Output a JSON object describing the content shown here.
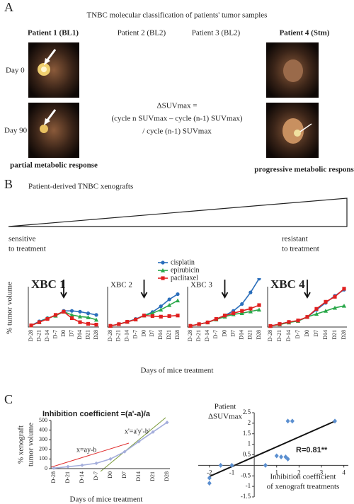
{
  "panel_a": {
    "label": "A",
    "title": "TNBC molecular classification of patients' tumor samples",
    "patients": [
      "Patient 1 (BL1)",
      "Patient 2 (BL2)",
      "Patient 3 (BL2)",
      "Patient 4 (Stm)"
    ],
    "timepoints": [
      "Day 0",
      "Day 90"
    ],
    "formula": [
      "ΔSUVmax =",
      "(cycle n SUVmax – cycle (n-1)  SUVmax)",
      "/ cycle (n-1) SUVmax"
    ],
    "responses": [
      "partial metabolic response",
      "progressive metabolic response"
    ]
  },
  "panel_b": {
    "label": "B",
    "title": "Patient-derived TNBC xenografts",
    "sensitive": [
      "sensitive",
      "to treatment"
    ],
    "resistant": [
      "resistant",
      "to treatment"
    ],
    "ylabel": "% tumor volume",
    "xlabel": "Days of mice treatment"
  },
  "panel_c": {
    "label": "C"
  },
  "chart_data": [
    {
      "type": "line",
      "title": "XBC 1",
      "title_bold": true,
      "categories": [
        "D-28",
        "D-21",
        "D-14",
        "D-7",
        "D0",
        "D7",
        "D14",
        "D21",
        "D28"
      ],
      "ylim": [
        0,
        250
      ],
      "series": [
        {
          "name": "cisplatin",
          "color": "#2a6ebb",
          "marker": "circle",
          "values": [
            10,
            35,
            55,
            70,
            100,
            100,
            95,
            85,
            75
          ]
        },
        {
          "name": "epirubicin",
          "color": "#2aa84a",
          "marker": "triangle",
          "values": [
            10,
            30,
            55,
            70,
            95,
            75,
            65,
            60,
            45
          ]
        },
        {
          "name": "paclitaxel",
          "color": "#e02020",
          "marker": "square",
          "values": [
            10,
            30,
            50,
            75,
            95,
            55,
            30,
            20,
            15
          ]
        }
      ]
    },
    {
      "type": "line",
      "title": "XBC 2",
      "title_bold": false,
      "categories": [
        "D-28",
        "D-21",
        "D-14",
        "D-7",
        "D0",
        "D7",
        "D14",
        "D21",
        "D28"
      ],
      "ylim": [
        0,
        350
      ],
      "series": [
        {
          "name": "cisplatin",
          "color": "#2a6ebb",
          "marker": "circle",
          "values": [
            10,
            25,
            45,
            70,
            100,
            130,
            180,
            240,
            285
          ]
        },
        {
          "name": "epirubicin",
          "color": "#2aa84a",
          "marker": "triangle",
          "values": [
            10,
            25,
            45,
            65,
            100,
            120,
            150,
            190,
            230
          ]
        },
        {
          "name": "paclitaxel",
          "color": "#e02020",
          "marker": "square",
          "values": [
            10,
            25,
            45,
            65,
            100,
            95,
            90,
            95,
            100
          ]
        }
      ]
    },
    {
      "type": "line",
      "title": "XBC 3",
      "title_bold": false,
      "categories": [
        "D-28",
        "D-21",
        "D-14",
        "D-7",
        "D0",
        "D7",
        "D14",
        "D21",
        "D28"
      ],
      "ylim": [
        0,
        350
      ],
      "series": [
        {
          "name": "cisplatin",
          "color": "#2a6ebb",
          "marker": "circle",
          "values": [
            10,
            25,
            40,
            70,
            100,
            140,
            200,
            300,
            420
          ]
        },
        {
          "name": "epirubicin",
          "color": "#2aa84a",
          "marker": "triangle",
          "values": [
            10,
            25,
            40,
            65,
            90,
            110,
            120,
            135,
            150
          ]
        },
        {
          "name": "paclitaxel",
          "color": "#e02020",
          "marker": "square",
          "values": [
            10,
            25,
            40,
            70,
            100,
            120,
            140,
            160,
            190
          ]
        }
      ]
    },
    {
      "type": "line",
      "title": "XBC 4",
      "title_bold": true,
      "categories": [
        "D-28",
        "D-21",
        "D-14",
        "D-7",
        "D0",
        "D7",
        "D14",
        "D21",
        "D28"
      ],
      "ylim": [
        0,
        400
      ],
      "series": [
        {
          "name": "cisplatin",
          "color": "#2a6ebb",
          "marker": "circle",
          "values": [
            10,
            30,
            50,
            60,
            100,
            170,
            240,
            310,
            370
          ]
        },
        {
          "name": "epirubicin",
          "color": "#2aa84a",
          "marker": "triangle",
          "values": [
            10,
            25,
            45,
            60,
            100,
            130,
            160,
            190,
            210
          ]
        },
        {
          "name": "paclitaxel",
          "color": "#e02020",
          "marker": "square",
          "values": [
            10,
            30,
            50,
            65,
            100,
            180,
            250,
            300,
            380
          ]
        }
      ]
    },
    {
      "type": "line",
      "title": "Inhibition coefficient =(a'-a)/a",
      "title_bold": true,
      "ylabel": [
        "% xenograft",
        "tumor volume"
      ],
      "xlabel": "Days of mice treatment",
      "annotations": [
        "x=ay-b",
        "x'=a'y'-b'"
      ],
      "categories": [
        "D-28",
        "D-21",
        "D-14",
        "D-7",
        "D0",
        "D7",
        "D14",
        "D21",
        "D28"
      ],
      "ylim": [
        0,
        500
      ],
      "yticks": [
        0,
        100,
        200,
        300,
        400,
        500
      ],
      "series": [
        {
          "color": "#a4aedc",
          "marker": "diamond",
          "values": [
            5,
            20,
            35,
            55,
            100,
            175,
            280,
            380,
            480
          ]
        }
      ]
    },
    {
      "type": "scatter",
      "ylabel": [
        "Patient",
        "ΔSUVmax"
      ],
      "xlabel": [
        "Inhibition coefficient",
        "of xenograft treatments"
      ],
      "annotation": "R=0.81**",
      "color": "#5b8fd0",
      "x": [
        -2,
        -2,
        -1.5,
        -1,
        0.5,
        1,
        1.2,
        1.4,
        1.5,
        1.5,
        1.7,
        3.6
      ],
      "values": [
        -0.85,
        -0.6,
        0,
        0,
        0,
        0.45,
        0.4,
        0.4,
        0.3,
        2.1,
        2.1,
        2.1
      ],
      "xlim": [
        -2.5,
        4.2
      ],
      "xticks": [
        -2,
        -1,
        1,
        2,
        3,
        4
      ],
      "ylim": [
        -1.5,
        2.5
      ],
      "yticks": [
        -1.5,
        -1,
        -0.5,
        0.5,
        1,
        1.5,
        2,
        2.5
      ]
    }
  ]
}
